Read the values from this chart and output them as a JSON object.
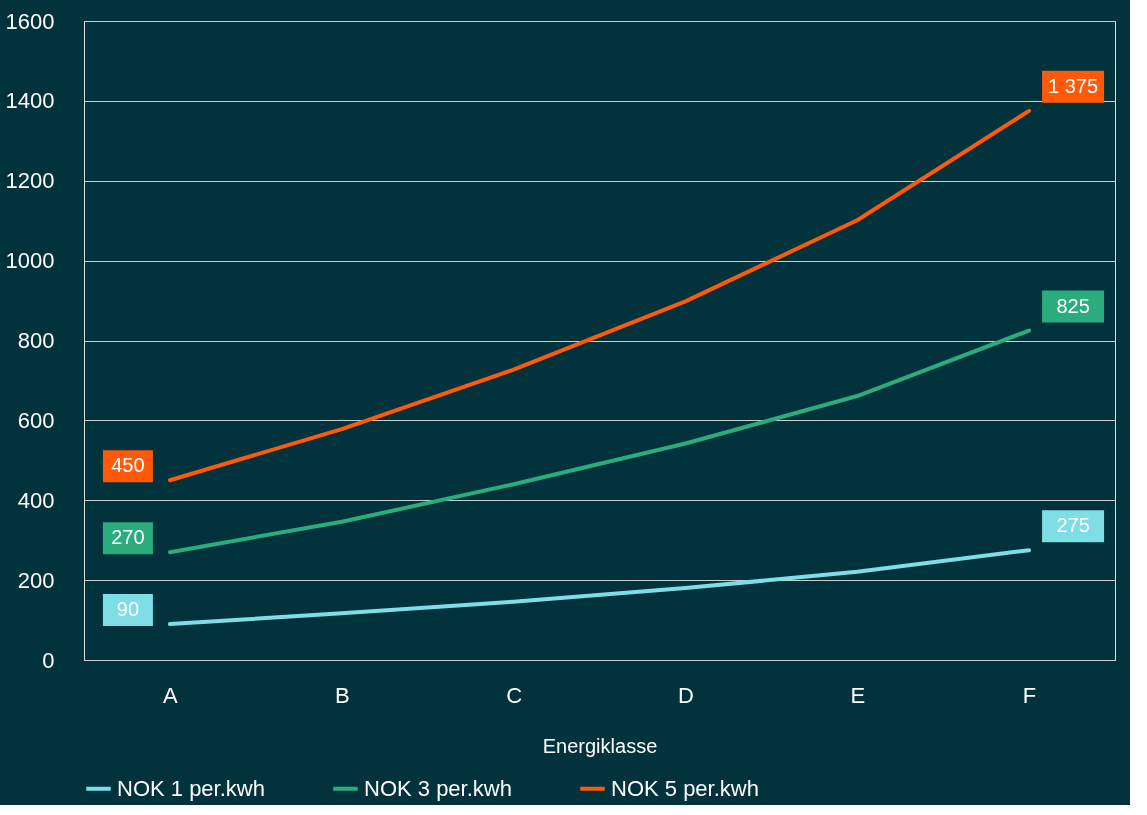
{
  "chart_data": {
    "type": "line",
    "xlabel": "Energiklasse",
    "categories": [
      "A",
      "B",
      "C",
      "D",
      "E",
      "F"
    ],
    "series": [
      {
        "name": "NOK 1 per.kwh",
        "color": "#7fdde6",
        "values": [
          90,
          117,
          146,
          180,
          221,
          275
        ],
        "value_labels": [
          "90",
          null,
          null,
          null,
          null,
          "275"
        ]
      },
      {
        "name": "NOK 3 per.kwh",
        "color": "#2aac7c",
        "values": [
          270,
          346,
          440,
          542,
          661,
          825
        ],
        "value_labels": [
          "270",
          null,
          null,
          null,
          null,
          "825"
        ]
      },
      {
        "name": "NOK 5 per.kwh",
        "color": "#ff5a0a",
        "values": [
          450,
          578,
          727,
          898,
          1101,
          1375
        ],
        "value_labels": [
          "450",
          null,
          null,
          null,
          null,
          "1 375"
        ]
      }
    ],
    "ylim": [
      0,
      1600
    ],
    "yticks": [
      0,
      200,
      400,
      600,
      800,
      1000,
      1200,
      1400,
      1600
    ],
    "grid": "y",
    "legend": "bottom",
    "marker": "none",
    "line_style": "solid"
  }
}
